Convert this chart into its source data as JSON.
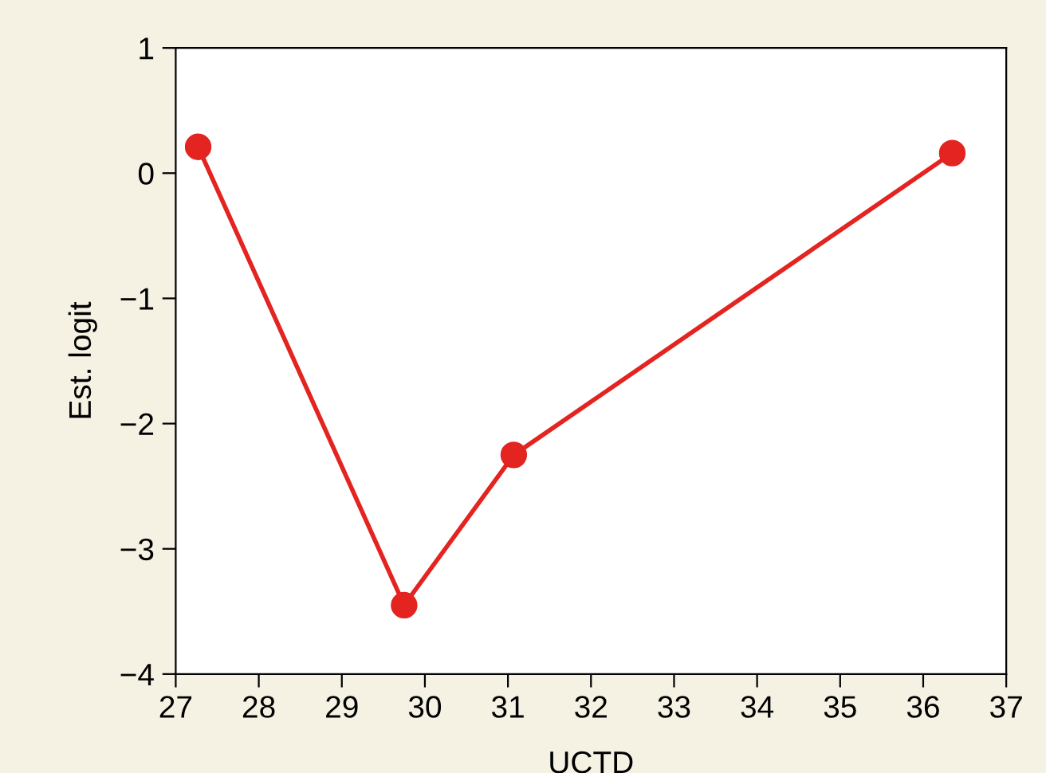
{
  "chart_data": {
    "type": "line",
    "xlabel": "UCTD",
    "ylabel": "Est. logit",
    "x": [
      27.27,
      29.75,
      31.07,
      36.35
    ],
    "series": [
      {
        "color": "#e32420",
        "values": [
          0.21,
          -3.45,
          -2.25,
          0.16
        ]
      }
    ],
    "xlim": [
      27,
      37
    ],
    "xticks": [
      27,
      28,
      29,
      30,
      31,
      32,
      33,
      34,
      35,
      36,
      37
    ],
    "ylim": [
      -4,
      1
    ],
    "yticks": [
      {
        "value": -4,
        "label": "−4"
      },
      {
        "value": -3,
        "label": "−3"
      },
      {
        "value": -2,
        "label": "−2"
      },
      {
        "value": -1,
        "label": "−1"
      },
      0,
      1
    ],
    "marker": "circle",
    "line_style": "solid",
    "grid": false,
    "legend": false
  }
}
